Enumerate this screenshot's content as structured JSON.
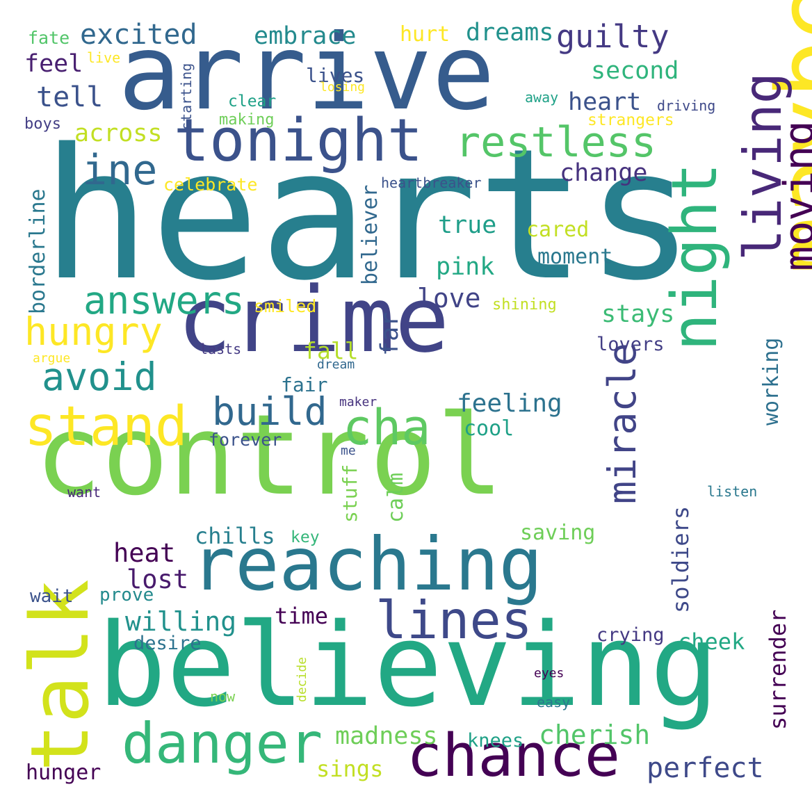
{
  "palette": {
    "purple": "#440154",
    "indigo": "#46327e",
    "blue": "#365c8d",
    "teal": "#277f8e",
    "cyan": "#1fa187",
    "green": "#4ac16d",
    "lime": "#a0da39",
    "yellow": "#fde725",
    "background": "#ffffff"
  },
  "words": [
    {
      "text": "hearts",
      "color": "#277f8e"
    },
    {
      "text": "arrive",
      "color": "#365c8d"
    },
    {
      "text": "control",
      "color": "#7ad151"
    },
    {
      "text": "crime",
      "color": "#414487"
    },
    {
      "text": "believing",
      "color": "#22a884"
    },
    {
      "text": "maybe",
      "color": "#fde725"
    },
    {
      "text": "reaching",
      "color": "#2a788e"
    },
    {
      "text": "talk",
      "color": "#d2e21b"
    },
    {
      "text": "tonight",
      "color": "#3b528b"
    },
    {
      "text": "night",
      "color": "#2fb47c"
    },
    {
      "text": "living",
      "color": "#482878"
    },
    {
      "text": "moving",
      "color": "#440154"
    },
    {
      "text": "chance",
      "color": "#440154"
    },
    {
      "text": "danger",
      "color": "#35b779"
    },
    {
      "text": "restless",
      "color": "#54c568"
    },
    {
      "text": "lines",
      "color": "#3e4989"
    },
    {
      "text": "stand",
      "color": "#fde725"
    },
    {
      "text": "miracle",
      "color": "#414487"
    },
    {
      "text": "cha",
      "color": "#5ec962"
    },
    {
      "text": "ine",
      "color": "#31688e"
    },
    {
      "text": "answers",
      "color": "#22a884"
    },
    {
      "text": "hungry",
      "color": "#fde725"
    },
    {
      "text": "avoid",
      "color": "#21918c"
    },
    {
      "text": "build",
      "color": "#31688e"
    },
    {
      "text": "guilty",
      "color": "#443983"
    },
    {
      "text": "excited",
      "color": "#31688e"
    },
    {
      "text": "embrace",
      "color": "#238a8d"
    },
    {
      "text": "dreams",
      "color": "#21918c"
    },
    {
      "text": "hurt",
      "color": "#fde725"
    },
    {
      "text": "second",
      "color": "#2fb47c"
    },
    {
      "text": "heart",
      "color": "#3b528b"
    },
    {
      "text": "change",
      "color": "#46327e"
    },
    {
      "text": "across",
      "color": "#c2df23"
    },
    {
      "text": "tell",
      "color": "#3b528b"
    },
    {
      "text": "feel",
      "color": "#481f70"
    },
    {
      "text": "fate",
      "color": "#52c569"
    },
    {
      "text": "live",
      "color": "#fde725"
    },
    {
      "text": "lives",
      "color": "#3b528b"
    },
    {
      "text": "losing",
      "color": "#fde725"
    },
    {
      "text": "clear",
      "color": "#1fa187"
    },
    {
      "text": "making",
      "color": "#6ece58"
    },
    {
      "text": "starting",
      "color": "#3b528b"
    },
    {
      "text": "boys",
      "color": "#433e85"
    },
    {
      "text": "away",
      "color": "#1fa187"
    },
    {
      "text": "driving",
      "color": "#3e4989"
    },
    {
      "text": "strangers",
      "color": "#fde725"
    },
    {
      "text": "celebrate",
      "color": "#fde725"
    },
    {
      "text": "heartbreaker",
      "color": "#3b528b"
    },
    {
      "text": "borderline",
      "color": "#2a788e"
    },
    {
      "text": "believer",
      "color": "#31688e"
    },
    {
      "text": "true",
      "color": "#1f9e89"
    },
    {
      "text": "cared",
      "color": "#c2df23"
    },
    {
      "text": "pink",
      "color": "#22a884"
    },
    {
      "text": "moment",
      "color": "#2a788e"
    },
    {
      "text": "love",
      "color": "#414487"
    },
    {
      "text": "smiled",
      "color": "#fde725"
    },
    {
      "text": "shining",
      "color": "#c2df23"
    },
    {
      "text": "stays",
      "color": "#3bbb75"
    },
    {
      "text": "lovers",
      "color": "#433e85"
    },
    {
      "text": "working",
      "color": "#2d708e"
    },
    {
      "text": "far",
      "color": "#3b528b"
    },
    {
      "text": "fall",
      "color": "#b5de2b"
    },
    {
      "text": "lasts",
      "color": "#443a83"
    },
    {
      "text": "argue",
      "color": "#fde725"
    },
    {
      "text": "dream",
      "color": "#31688e"
    },
    {
      "text": "fair",
      "color": "#2c728e"
    },
    {
      "text": "feeling",
      "color": "#2c728e"
    },
    {
      "text": "maker",
      "color": "#46327e"
    },
    {
      "text": "forever",
      "color": "#3b528b"
    },
    {
      "text": "cool",
      "color": "#1fa187"
    },
    {
      "text": "me",
      "color": "#3b528b"
    },
    {
      "text": "want",
      "color": "#482878"
    },
    {
      "text": "listen",
      "color": "#2a788e"
    },
    {
      "text": "stuff",
      "color": "#7ad151"
    },
    {
      "text": "calm",
      "color": "#6ece58"
    },
    {
      "text": "chills",
      "color": "#277f8e"
    },
    {
      "text": "key",
      "color": "#34b679"
    },
    {
      "text": "saving",
      "color": "#6ece58"
    },
    {
      "text": "soldiers",
      "color": "#3e4989"
    },
    {
      "text": "heat",
      "color": "#440154"
    },
    {
      "text": "lost",
      "color": "#481a6c"
    },
    {
      "text": "wait",
      "color": "#3b528b"
    },
    {
      "text": "prove",
      "color": "#238a8d"
    },
    {
      "text": "willing",
      "color": "#21918c"
    },
    {
      "text": "time",
      "color": "#440154"
    },
    {
      "text": "surrender",
      "color": "#440154"
    },
    {
      "text": "crying",
      "color": "#443983"
    },
    {
      "text": "cheek",
      "color": "#22a884"
    },
    {
      "text": "desire",
      "color": "#2c728e"
    },
    {
      "text": "decide",
      "color": "#b8de29"
    },
    {
      "text": "eyes",
      "color": "#440154"
    },
    {
      "text": "now",
      "color": "#7ad151"
    },
    {
      "text": "easy",
      "color": "#2a788e"
    },
    {
      "text": "madness",
      "color": "#6ece58"
    },
    {
      "text": "cherish",
      "color": "#52c569"
    },
    {
      "text": "knees",
      "color": "#1fa187"
    },
    {
      "text": "perfect",
      "color": "#3e4989"
    },
    {
      "text": "sings",
      "color": "#c2df23"
    },
    {
      "text": "hunger",
      "color": "#440154"
    }
  ]
}
